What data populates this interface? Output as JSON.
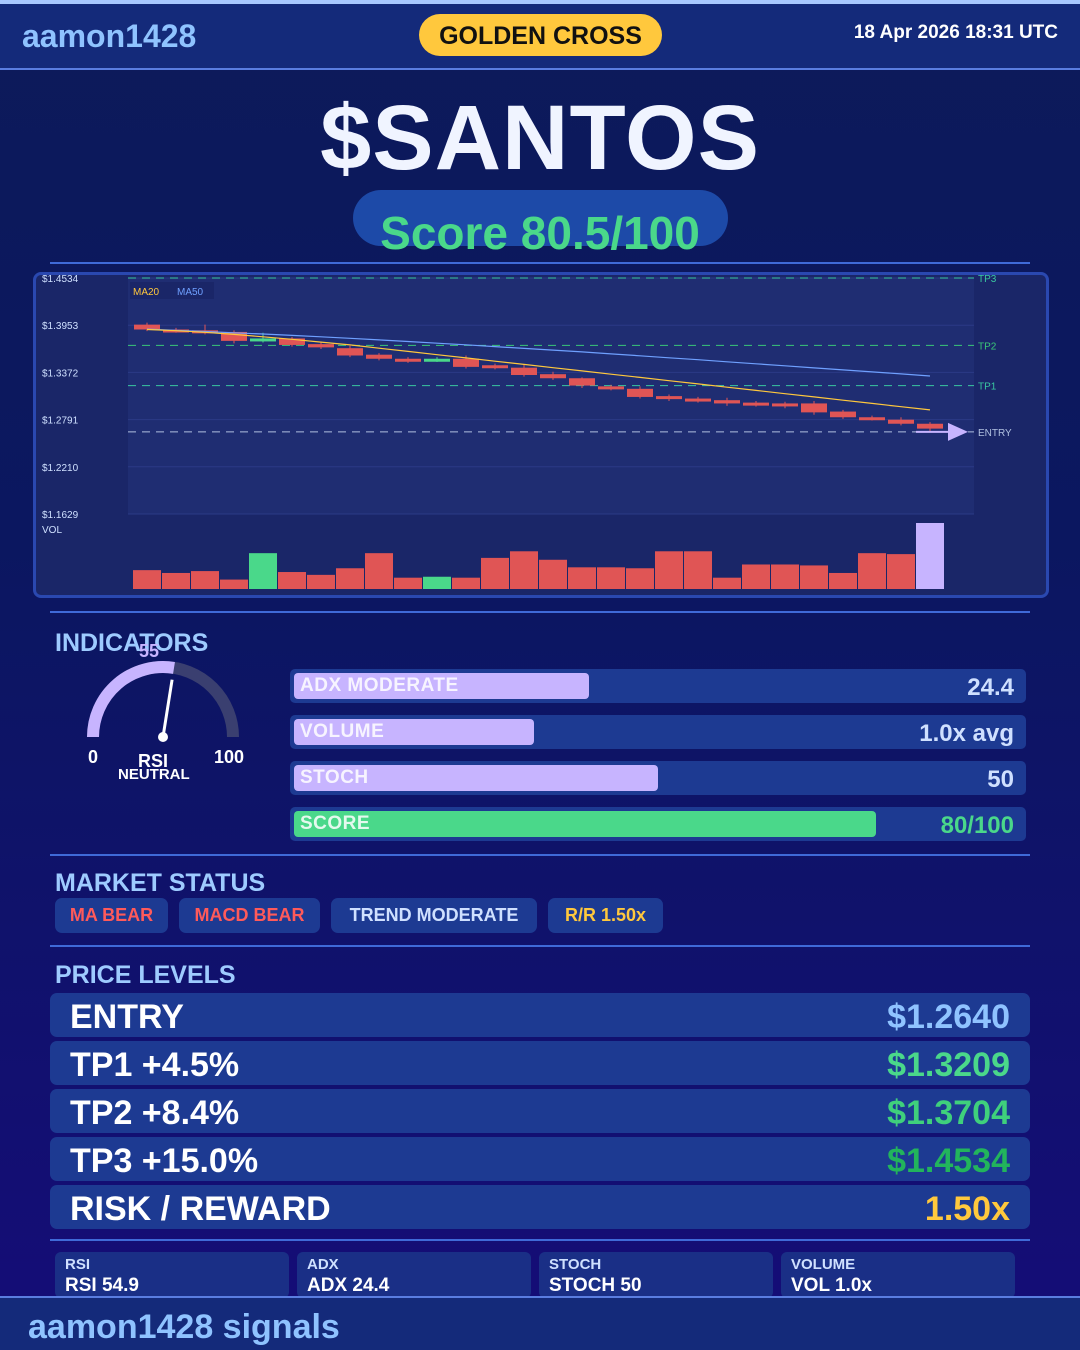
{
  "header": {
    "brand": "aamon1428",
    "badge": "GOLDEN CROSS",
    "datetime": "18 Apr 2026  18:31 UTC"
  },
  "ticker": "$SANTOS",
  "score": {
    "text": "Score 80.5/100",
    "value": 80.5,
    "max": 100
  },
  "chart_data": {
    "type": "candlestick",
    "y_ticks": [
      "$1.4534",
      "$1.3953",
      "$1.3372",
      "$1.2791",
      "$1.2210",
      "$1.1629"
    ],
    "ylim": [
      1.1629,
      1.4534
    ],
    "legend": [
      "MA20",
      "MA50"
    ],
    "levels": [
      {
        "name": "TP3",
        "value": 1.4534
      },
      {
        "name": "TP2",
        "value": 1.3704
      },
      {
        "name": "TP1",
        "value": 1.3209
      },
      {
        "name": "ENTRY",
        "value": 1.264
      }
    ],
    "candles": [
      {
        "o": 1.396,
        "c": 1.39,
        "h": 1.3985,
        "l": 1.388
      },
      {
        "o": 1.39,
        "c": 1.3885,
        "h": 1.392,
        "l": 1.386
      },
      {
        "o": 1.389,
        "c": 1.3865,
        "h": 1.396,
        "l": 1.384
      },
      {
        "o": 1.387,
        "c": 1.376,
        "h": 1.389,
        "l": 1.373
      },
      {
        "o": 1.378,
        "c": 1.379,
        "h": 1.386,
        "l": 1.374
      },
      {
        "o": 1.379,
        "c": 1.371,
        "h": 1.381,
        "l": 1.369
      },
      {
        "o": 1.372,
        "c": 1.368,
        "h": 1.374,
        "l": 1.366
      },
      {
        "o": 1.367,
        "c": 1.358,
        "h": 1.37,
        "l": 1.356
      },
      {
        "o": 1.359,
        "c": 1.354,
        "h": 1.361,
        "l": 1.352
      },
      {
        "o": 1.354,
        "c": 1.351,
        "h": 1.356,
        "l": 1.349
      },
      {
        "o": 1.352,
        "c": 1.354,
        "h": 1.356,
        "l": 1.35
      },
      {
        "o": 1.354,
        "c": 1.344,
        "h": 1.358,
        "l": 1.342
      },
      {
        "o": 1.346,
        "c": 1.344,
        "h": 1.348,
        "l": 1.341
      },
      {
        "o": 1.343,
        "c": 1.334,
        "h": 1.347,
        "l": 1.332
      },
      {
        "o": 1.335,
        "c": 1.33,
        "h": 1.338,
        "l": 1.328
      },
      {
        "o": 1.33,
        "c": 1.321,
        "h": 1.331,
        "l": 1.318
      },
      {
        "o": 1.32,
        "c": 1.317,
        "h": 1.322,
        "l": 1.315
      },
      {
        "o": 1.317,
        "c": 1.307,
        "h": 1.32,
        "l": 1.305
      },
      {
        "o": 1.308,
        "c": 1.305,
        "h": 1.31,
        "l": 1.302
      },
      {
        "o": 1.305,
        "c": 1.303,
        "h": 1.307,
        "l": 1.3
      },
      {
        "o": 1.303,
        "c": 1.299,
        "h": 1.306,
        "l": 1.296
      },
      {
        "o": 1.3,
        "c": 1.298,
        "h": 1.302,
        "l": 1.295
      },
      {
        "o": 1.299,
        "c": 1.296,
        "h": 1.301,
        "l": 1.293
      },
      {
        "o": 1.299,
        "c": 1.288,
        "h": 1.302,
        "l": 1.285
      },
      {
        "o": 1.289,
        "c": 1.282,
        "h": 1.291,
        "l": 1.28
      },
      {
        "o": 1.282,
        "c": 1.28,
        "h": 1.284,
        "l": 1.278
      },
      {
        "o": 1.279,
        "c": 1.274,
        "h": 1.282,
        "l": 1.272
      },
      {
        "o": 1.274,
        "c": 1.268,
        "h": 1.276,
        "l": 1.265
      }
    ],
    "bull_flags": [
      false,
      false,
      false,
      false,
      true,
      false,
      false,
      false,
      false,
      false,
      true,
      false,
      false,
      false,
      false,
      false,
      false,
      false,
      false,
      false,
      false,
      false,
      false,
      false,
      false,
      false,
      false,
      false
    ],
    "ma20": [
      1.39,
      1.3885,
      1.3865,
      1.384,
      1.381,
      1.378,
      1.3745,
      1.371,
      1.367,
      1.363,
      1.359,
      1.355,
      1.351,
      1.347,
      1.343,
      1.339,
      1.335,
      1.331,
      1.327,
      1.323,
      1.319,
      1.315,
      1.311,
      1.307,
      1.303,
      1.299,
      1.295,
      1.291
    ],
    "ma50": [
      1.3905,
      1.389,
      1.3875,
      1.386,
      1.3845,
      1.3828,
      1.381,
      1.3792,
      1.3772,
      1.3752,
      1.3732,
      1.3712,
      1.369,
      1.3668,
      1.3646,
      1.3624,
      1.36,
      1.3576,
      1.3552,
      1.3528,
      1.3503,
      1.3478,
      1.3453,
      1.3428,
      1.3403,
      1.3378,
      1.3353,
      1.3328
    ],
    "volume_label": "VOL",
    "volume": [
      20,
      17,
      19,
      10,
      38,
      18,
      15,
      22,
      38,
      12,
      13,
      12,
      33,
      40,
      31,
      23,
      23,
      22,
      40,
      40,
      12,
      26,
      26,
      25,
      17,
      38,
      37,
      70
    ],
    "volume_max": 70
  },
  "indicators": {
    "title": "INDICATORS",
    "rsi": {
      "value": 55,
      "value_text": "55",
      "min_label": "0",
      "max_label": "100",
      "name": "RSI",
      "state": "NEUTRAL"
    },
    "bars": [
      {
        "label": "ADX  MODERATE",
        "value": "24.4",
        "fill": 0.405,
        "color": "#c7b4ff"
      },
      {
        "label": "VOLUME",
        "value": "1.0x avg",
        "fill": 0.33,
        "color": "#c7b4ff"
      },
      {
        "label": "STOCH",
        "value": "50",
        "fill": 0.5,
        "color": "#c7b4ff"
      },
      {
        "label": "SCORE",
        "value": "80/100",
        "fill": 0.8,
        "color": "#4ad88a"
      }
    ]
  },
  "market_status": {
    "title": "MARKET STATUS",
    "chips": [
      {
        "label": "MA BEAR",
        "color": "#ff5a5a"
      },
      {
        "label": "MACD BEAR",
        "color": "#ff5a5a"
      },
      {
        "label": "TREND MODERATE",
        "color": "#cfe0ff"
      },
      {
        "label": "R/R  1.50x",
        "color": "#ffc83d"
      }
    ]
  },
  "price_levels": {
    "title": "PRICE LEVELS",
    "rows": [
      {
        "name": "ENTRY",
        "value": "$1.2640",
        "color": "#8fc3ff"
      },
      {
        "name": "TP1  +4.5%",
        "value": "$1.3209",
        "color": "#4ad88a"
      },
      {
        "name": "TP2  +8.4%",
        "value": "$1.3704",
        "color": "#3fd07c"
      },
      {
        "name": "TP3  +15.0%",
        "value": "$1.4534",
        "color": "#22b45c"
      },
      {
        "name": "RISK / REWARD",
        "value": "1.50x",
        "color": "#ffc83d"
      }
    ]
  },
  "mini_cards": [
    {
      "title": "RSI",
      "value": "RSI 54.9"
    },
    {
      "title": "ADX",
      "value": "ADX 24.4"
    },
    {
      "title": "STOCH",
      "value": "STOCH 50"
    },
    {
      "title": "VOLUME",
      "value": "VOL 1.0x"
    }
  ],
  "footer": {
    "text": "aamon1428 signals"
  }
}
